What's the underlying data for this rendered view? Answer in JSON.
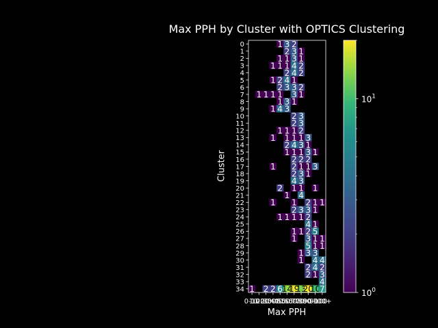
{
  "chart_data": {
    "type": "heatmap",
    "title": "Max PPH by Cluster with OPTICS Clustering",
    "xlabel": "Max PPH",
    "ylabel": "Cluster",
    "x_categories": [
      "0-10",
      "10-20",
      "20-30",
      "30-40",
      "40-50",
      "50-60",
      "60-70",
      "70-80",
      "80-90",
      "90-100",
      "100+"
    ],
    "y_categories": [
      "0",
      "1",
      "2",
      "3",
      "4",
      "5",
      "6",
      "7",
      "8",
      "9",
      "10",
      "11",
      "12",
      "13",
      "14",
      "15",
      "16",
      "17",
      "18",
      "19",
      "20",
      "21",
      "22",
      "23",
      "24",
      "25",
      "26",
      "27",
      "28",
      "29",
      "30",
      "31",
      "32",
      "33",
      "34"
    ],
    "colormap": "viridis",
    "color_scale": "log",
    "colorbar": {
      "min": 1,
      "max": 20,
      "ticks": [
        "10^0",
        "10^1"
      ]
    },
    "cells": [
      [
        0,
        4,
        1
      ],
      [
        0,
        5,
        3
      ],
      [
        0,
        6,
        2
      ],
      [
        1,
        5,
        2
      ],
      [
        1,
        6,
        3
      ],
      [
        1,
        7,
        1
      ],
      [
        2,
        4,
        1
      ],
      [
        2,
        5,
        1
      ],
      [
        2,
        6,
        3
      ],
      [
        2,
        7,
        1
      ],
      [
        3,
        3,
        1
      ],
      [
        3,
        4,
        1
      ],
      [
        3,
        5,
        1
      ],
      [
        3,
        6,
        4
      ],
      [
        3,
        7,
        2
      ],
      [
        4,
        5,
        2
      ],
      [
        4,
        6,
        4
      ],
      [
        4,
        7,
        2
      ],
      [
        5,
        3,
        1
      ],
      [
        5,
        4,
        2
      ],
      [
        5,
        5,
        4
      ],
      [
        5,
        6,
        1
      ],
      [
        6,
        4,
        2
      ],
      [
        6,
        5,
        3
      ],
      [
        6,
        6,
        3
      ],
      [
        6,
        7,
        2
      ],
      [
        7,
        1,
        1
      ],
      [
        7,
        2,
        1
      ],
      [
        7,
        3,
        1
      ],
      [
        7,
        4,
        1
      ],
      [
        7,
        6,
        3
      ],
      [
        7,
        7,
        1
      ],
      [
        8,
        4,
        1
      ],
      [
        8,
        5,
        3
      ],
      [
        8,
        6,
        1
      ],
      [
        9,
        3,
        1
      ],
      [
        9,
        4,
        4
      ],
      [
        9,
        5,
        3
      ],
      [
        10,
        6,
        2
      ],
      [
        10,
        7,
        3
      ],
      [
        11,
        6,
        2
      ],
      [
        11,
        7,
        3
      ],
      [
        12,
        4,
        1
      ],
      [
        12,
        5,
        1
      ],
      [
        12,
        6,
        1
      ],
      [
        12,
        7,
        2
      ],
      [
        13,
        3,
        1
      ],
      [
        13,
        5,
        1
      ],
      [
        13,
        6,
        1
      ],
      [
        13,
        7,
        1
      ],
      [
        13,
        8,
        3
      ],
      [
        14,
        5,
        2
      ],
      [
        14,
        6,
        4
      ],
      [
        14,
        7,
        3
      ],
      [
        14,
        8,
        1
      ],
      [
        15,
        5,
        1
      ],
      [
        15,
        6,
        1
      ],
      [
        15,
        7,
        1
      ],
      [
        15,
        8,
        3
      ],
      [
        15,
        9,
        1
      ],
      [
        16,
        6,
        2
      ],
      [
        16,
        7,
        2
      ],
      [
        16,
        8,
        2
      ],
      [
        17,
        3,
        1
      ],
      [
        17,
        6,
        2
      ],
      [
        17,
        7,
        1
      ],
      [
        17,
        8,
        1
      ],
      [
        17,
        9,
        3
      ],
      [
        18,
        6,
        2
      ],
      [
        18,
        7,
        3
      ],
      [
        18,
        8,
        1
      ],
      [
        19,
        6,
        4
      ],
      [
        19,
        7,
        3
      ],
      [
        20,
        4,
        2
      ],
      [
        20,
        6,
        1
      ],
      [
        20,
        7,
        1
      ],
      [
        20,
        9,
        1
      ],
      [
        21,
        5,
        1
      ],
      [
        21,
        7,
        4
      ],
      [
        22,
        3,
        1
      ],
      [
        22,
        6,
        1
      ],
      [
        22,
        8,
        2
      ],
      [
        22,
        9,
        1
      ],
      [
        22,
        10,
        1
      ],
      [
        23,
        6,
        2
      ],
      [
        23,
        7,
        3
      ],
      [
        23,
        8,
        3
      ],
      [
        23,
        9,
        1
      ],
      [
        24,
        4,
        1
      ],
      [
        24,
        5,
        1
      ],
      [
        24,
        6,
        1
      ],
      [
        24,
        7,
        1
      ],
      [
        24,
        8,
        2
      ],
      [
        25,
        8,
        4
      ],
      [
        25,
        9,
        1
      ],
      [
        26,
        6,
        1
      ],
      [
        26,
        7,
        1
      ],
      [
        26,
        8,
        2
      ],
      [
        26,
        9,
        5
      ],
      [
        27,
        6,
        1
      ],
      [
        27,
        8,
        3
      ],
      [
        27,
        9,
        1
      ],
      [
        27,
        10,
        1
      ],
      [
        28,
        8,
        5
      ],
      [
        28,
        9,
        1
      ],
      [
        28,
        10,
        1
      ],
      [
        29,
        7,
        1
      ],
      [
        29,
        8,
        3
      ],
      [
        29,
        9,
        3
      ],
      [
        30,
        7,
        1
      ],
      [
        30,
        9,
        4
      ],
      [
        30,
        10,
        4
      ],
      [
        31,
        8,
        2
      ],
      [
        31,
        9,
        4
      ],
      [
        31,
        10,
        2
      ],
      [
        32,
        8,
        2
      ],
      [
        32,
        9,
        1
      ],
      [
        32,
        10,
        3
      ],
      [
        33,
        10,
        4
      ],
      [
        34,
        0,
        1
      ],
      [
        34,
        2,
        2
      ],
      [
        34,
        3,
        2
      ],
      [
        34,
        4,
        6
      ],
      [
        34,
        5,
        14
      ],
      [
        34,
        6,
        19
      ],
      [
        34,
        7,
        13
      ],
      [
        34,
        8,
        20
      ],
      [
        34,
        9,
        10
      ],
      [
        34,
        10,
        7
      ]
    ]
  }
}
